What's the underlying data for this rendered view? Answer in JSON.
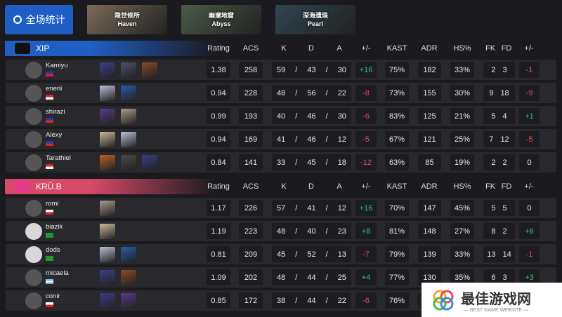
{
  "overview_button": {
    "label": "全场统计",
    "icon": "pie-chart-icon"
  },
  "maps": [
    {
      "cn": "隐世修所",
      "en": "Haven",
      "color": "#7b6a5a"
    },
    {
      "cn": "幽邃地窟",
      "en": "Abyss",
      "color": "#4a5a48"
    },
    {
      "cn": "深海遗珠",
      "en": "Pearl",
      "color": "#2f4650"
    }
  ],
  "columns": [
    "Rating",
    "ACS",
    "K",
    "D",
    "A",
    "+/-",
    "KAST",
    "ADR",
    "HS%",
    "FK",
    "FD",
    "+/-"
  ],
  "colors": {
    "positive": "#2ec46b",
    "negative": "#e04a4a"
  },
  "teams": [
    {
      "name": "XIP",
      "gradient": "#1f5fc4",
      "players": [
        {
          "name": "Kamiyu",
          "flag": "PH",
          "agents": [
            "#3a3f8a",
            "#4a5368",
            "#8a4a2a"
          ],
          "rating": "1.38",
          "acs": "258",
          "k": "59",
          "d": "43",
          "a": "30",
          "pm": "+16",
          "kast": "75%",
          "adr": "182",
          "hs": "33%",
          "fk": "2",
          "fd": "3",
          "fpm": "-1"
        },
        {
          "name": "enerii",
          "flag": "ID",
          "agents": [
            "#b8bfd6",
            "#2a5aa8"
          ],
          "rating": "0.94",
          "acs": "228",
          "k": "48",
          "d": "56",
          "a": "22",
          "pm": "-8",
          "kast": "73%",
          "adr": "155",
          "hs": "30%",
          "fk": "9",
          "fd": "18",
          "fpm": "-9"
        },
        {
          "name": "shirazi",
          "flag": "PH",
          "agents": [
            "#5a3a8a",
            "#a89a88"
          ],
          "rating": "0.99",
          "acs": "193",
          "k": "40",
          "d": "46",
          "a": "30",
          "pm": "-6",
          "kast": "83%",
          "adr": "125",
          "hs": "21%",
          "fk": "5",
          "fd": "4",
          "fpm": "+1"
        },
        {
          "name": "Alexy",
          "flag": "PH",
          "agents": [
            "#c8b898",
            "#b8bfd6"
          ],
          "rating": "0.94",
          "acs": "169",
          "k": "41",
          "d": "46",
          "a": "12",
          "pm": "-5",
          "kast": "67%",
          "adr": "121",
          "hs": "25%",
          "fk": "7",
          "fd": "12",
          "fpm": "-5"
        },
        {
          "name": "Tarathiel",
          "flag": "ID",
          "agents": [
            "#b8602a",
            "#4a4a4a",
            "#3a3a8a"
          ],
          "rating": "0.84",
          "acs": "141",
          "k": "33",
          "d": "45",
          "a": "18",
          "pm": "-12",
          "kast": "63%",
          "adr": "85",
          "hs": "19%",
          "fk": "2",
          "fd": "2",
          "fpm": "0"
        }
      ]
    },
    {
      "name": "KRÜ.B",
      "gradient": "#d84a6a",
      "players": [
        {
          "name": "romi",
          "flag": "CL",
          "agents": [
            "#a89a88"
          ],
          "rating": "1.17",
          "acs": "226",
          "k": "57",
          "d": "41",
          "a": "12",
          "pm": "+16",
          "kast": "70%",
          "adr": "147",
          "hs": "45%",
          "fk": "5",
          "fd": "5",
          "fpm": "0"
        },
        {
          "name": "biazik",
          "flag": "BR",
          "blank": true,
          "agents": [
            "#c8b898"
          ],
          "rating": "1.19",
          "acs": "223",
          "k": "48",
          "d": "40",
          "a": "23",
          "pm": "+8",
          "kast": "81%",
          "adr": "148",
          "hs": "27%",
          "fk": "8",
          "fd": "2",
          "fpm": "+6"
        },
        {
          "name": "dods",
          "flag": "BR",
          "blank": true,
          "agents": [
            "#b8bfd6",
            "#2a5aa8"
          ],
          "rating": "0.81",
          "acs": "209",
          "k": "45",
          "d": "52",
          "a": "13",
          "pm": "-7",
          "kast": "79%",
          "adr": "139",
          "hs": "33%",
          "fk": "13",
          "fd": "14",
          "fpm": "-1"
        },
        {
          "name": "micaela",
          "flag": "AR",
          "agents": [
            "#3a3f8a",
            "#8a4a2a"
          ],
          "rating": "1.09",
          "acs": "202",
          "k": "48",
          "d": "44",
          "a": "25",
          "pm": "+4",
          "kast": "77%",
          "adr": "130",
          "hs": "35%",
          "fk": "6",
          "fd": "3",
          "fpm": "+3"
        },
        {
          "name": "conir",
          "flag": "CL",
          "agents": [
            "#3a3a8a",
            "#5a3a8a"
          ],
          "rating": "0.85",
          "acs": "172",
          "k": "38",
          "d": "44",
          "a": "22",
          "pm": "-6",
          "kast": "76%",
          "adr": "",
          "hs": "",
          "fk": "",
          "fd": "",
          "fpm": ""
        }
      ]
    }
  ],
  "watermark": {
    "title": "最佳游戏网",
    "subtitle": "— BEST GAME WEBSITE —"
  }
}
